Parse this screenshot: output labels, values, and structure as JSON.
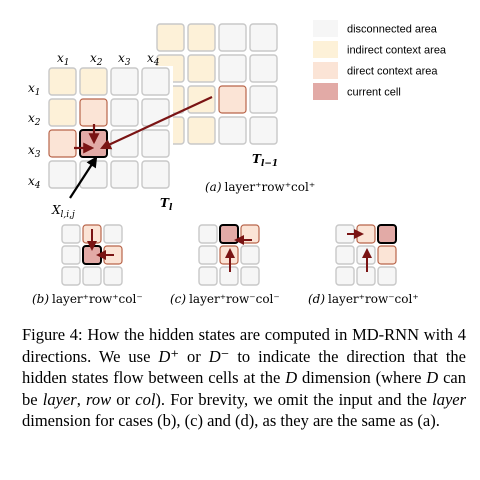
{
  "legend": {
    "items": [
      {
        "key": "disconnected",
        "label": "disconnected area",
        "color": "#f6f6f6"
      },
      {
        "key": "indirect",
        "label": "indirect context area",
        "color": "#fdf1d8"
      },
      {
        "key": "direct",
        "label": "direct context area",
        "color": "#fbe4d6"
      },
      {
        "key": "current",
        "label": "current cell",
        "color": "#e2aaa6"
      }
    ]
  },
  "colors": {
    "cell_border": "#c8c8c8",
    "arrow": "#7a1414",
    "pointer": "#000000",
    "direct_border": "#b8654a",
    "current_border": "#000000"
  },
  "main_grid": {
    "col_labels": [
      "x",
      "x",
      "x",
      "x"
    ],
    "col_subs": [
      "1",
      "2",
      "3",
      "4"
    ],
    "row_labels": [
      "x",
      "x",
      "x",
      "x"
    ],
    "row_subs": [
      "1",
      "2",
      "3",
      "4"
    ],
    "layer_label": "T",
    "layer_sub": "l",
    "prev_layer_label": "T",
    "prev_layer_sub": "l−1",
    "pointer_label": "X",
    "pointer_sub": "l,i,j"
  },
  "subcaptions": {
    "a": {
      "tag": "(a)",
      "text": "layer⁺row⁺col⁺"
    },
    "b": {
      "tag": "(b)",
      "text": "layer⁺row⁺col⁻"
    },
    "c": {
      "tag": "(c)",
      "text": "layer⁺row⁻col⁻"
    },
    "d": {
      "tag": "(d)",
      "text": "layer⁺row⁻col⁺"
    }
  },
  "caption": {
    "p1": "Figure 4: How the hidden states are computed in MD-RNN with 4 directions. We use ",
    "dplus": "D⁺",
    "p2": " or ",
    "dminus": "D⁻",
    "p3": " to indicate the direction that the hidden states flow between cells at the ",
    "d1": "D",
    "p4": " dimension (where ",
    "d2": "D",
    "p5": " can be ",
    "layer": "layer",
    "p6": ", ",
    "row": "row",
    "p7": " or ",
    "col": "col",
    "p8": "). For brevity, we omit the input and the ",
    "layer2": "layer",
    "p9": " dimension for cases (b), (c) and (d), as they are the same as (a)."
  }
}
